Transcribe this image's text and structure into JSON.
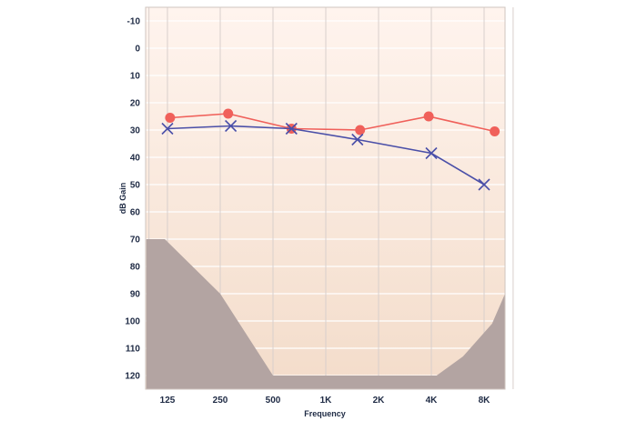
{
  "chart_data": {
    "type": "line",
    "xlabel": "Frequency",
    "ylabel": "dB Gain",
    "categories": [
      "125",
      "250",
      "500",
      "1K",
      "2K",
      "4K",
      "8K"
    ],
    "y_ticks": [
      "-10",
      "0",
      "10",
      "20",
      "30",
      "40",
      "50",
      "60",
      "70",
      "80",
      "90",
      "100",
      "110",
      "120"
    ],
    "ylim": [
      -10,
      125
    ],
    "y_inverted": true,
    "x_scale": "log2-octaves",
    "grid": true,
    "series": [
      {
        "marker": "circle",
        "color": "#f0605a",
        "points": [
          {
            "x": 0.05,
            "y": 25.5
          },
          {
            "x": 1.15,
            "y": 24
          },
          {
            "x": 2.35,
            "y": 29.5
          },
          {
            "x": 3.65,
            "y": 30
          },
          {
            "x": 4.95,
            "y": 25
          },
          {
            "x": 6.2,
            "y": 30.5
          }
        ]
      },
      {
        "marker": "x",
        "color": "#4a4fa8",
        "points": [
          {
            "x": 0,
            "y": 29.5
          },
          {
            "x": 1.2,
            "y": 28.5
          },
          {
            "x": 2.35,
            "y": 29.5
          },
          {
            "x": 3.6,
            "y": 33.5
          },
          {
            "x": 5.0,
            "y": 38.5
          },
          {
            "x": 6.0,
            "y": 50
          }
        ]
      }
    ],
    "shaded_region": {
      "color": "#b3a4a2",
      "points": [
        {
          "x": -0.4,
          "y": 70
        },
        {
          "x": -0.05,
          "y": 70
        },
        {
          "x": 1.0,
          "y": 90
        },
        {
          "x": 2.0,
          "y": 120
        },
        {
          "x": 5.1,
          "y": 120
        },
        {
          "x": 5.6,
          "y": 113
        },
        {
          "x": 6.15,
          "y": 101
        },
        {
          "x": 6.4,
          "y": 90
        },
        {
          "x": 6.55,
          "y": 90
        },
        {
          "x": 6.55,
          "y": 125
        },
        {
          "x": -0.4,
          "y": 125
        }
      ]
    },
    "background_gradient": [
      "#fff4ee",
      "#f3dcca"
    ]
  }
}
